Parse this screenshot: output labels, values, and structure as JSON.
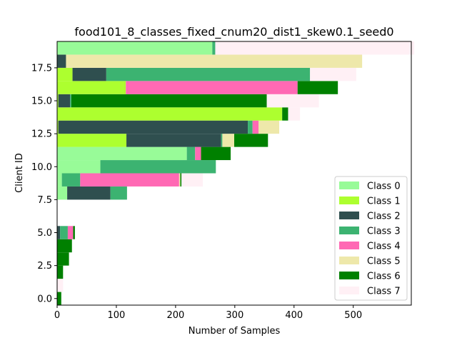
{
  "chart_data": {
    "type": "bar",
    "orientation": "horizontal",
    "stacked": true,
    "title": "food101_8_classes_fixed_cnum20_dist1_skew0.1_seed0",
    "xlabel": "Number of Samples",
    "ylabel": "Client ID",
    "xlim": [
      0,
      598
    ],
    "ylim": [
      -0.5,
      19.5
    ],
    "xticks": [
      0,
      100,
      200,
      300,
      400,
      500
    ],
    "yticks": [
      0.0,
      2.5,
      5.0,
      7.5,
      10.0,
      12.5,
      15.0,
      17.5
    ],
    "ytick_labels": [
      "0.0",
      "2.5",
      "5.0",
      "7.5",
      "10.0",
      "12.5",
      "15.0",
      "17.5"
    ],
    "xtick_labels": [
      "0",
      "100",
      "200",
      "300",
      "400",
      "500"
    ],
    "legend_position": "lower-right",
    "grid": false,
    "categories": [
      0,
      1,
      2,
      3,
      4,
      5,
      6,
      7,
      8,
      9,
      10,
      11,
      12,
      13,
      14,
      15,
      16,
      17,
      18,
      19
    ],
    "series": [
      {
        "name": "Class 0",
        "color": "#98fb98",
        "values": [
          0,
          0,
          0,
          0,
          0,
          0,
          0,
          0,
          17,
          8,
          73,
          219,
          0,
          0,
          0,
          0,
          0,
          0,
          0,
          262
        ]
      },
      {
        "name": "Class 1",
        "color": "#adff2f",
        "values": [
          0,
          0,
          0,
          0,
          0,
          0,
          0,
          0,
          0,
          0,
          0,
          0,
          117,
          2,
          380,
          2,
          116,
          26,
          0,
          0
        ]
      },
      {
        "name": "Class 2",
        "color": "#2f4f4f",
        "values": [
          0,
          0,
          0,
          0,
          0,
          5,
          0,
          0,
          73,
          0,
          0,
          0,
          160,
          320,
          0,
          20,
          0,
          57,
          15,
          0
        ]
      },
      {
        "name": "Class 3",
        "color": "#3cb371",
        "values": [
          0,
          0,
          0,
          0,
          0,
          13,
          0,
          0,
          28,
          31,
          195,
          14,
          2,
          8,
          0,
          2,
          0,
          344,
          0,
          5
        ]
      },
      {
        "name": "Class 4",
        "color": "#ff69b4",
        "values": [
          0,
          0,
          0,
          0,
          0,
          9,
          0,
          0,
          0,
          167,
          0,
          10,
          0,
          10,
          0,
          0,
          290,
          0,
          0,
          0
        ]
      },
      {
        "name": "Class 5",
        "color": "#eee8aa",
        "values": [
          0,
          0,
          0,
          0,
          0,
          0,
          0,
          0,
          0,
          2,
          0,
          0,
          20,
          35,
          0,
          0,
          0,
          0,
          500,
          0
        ]
      },
      {
        "name": "Class 6",
        "color": "#008000",
        "values": [
          7,
          0,
          10,
          20,
          25,
          3,
          0,
          0,
          0,
          2,
          0,
          50,
          57,
          0,
          10,
          330,
          68,
          0,
          0,
          0
        ]
      },
      {
        "name": "Class 7",
        "color": "#fff0f5",
        "values": [
          0,
          10,
          0,
          0,
          0,
          0,
          0,
          0,
          0,
          36,
          0,
          0,
          0,
          0,
          20,
          88,
          0,
          78,
          0,
          336
        ]
      }
    ]
  }
}
